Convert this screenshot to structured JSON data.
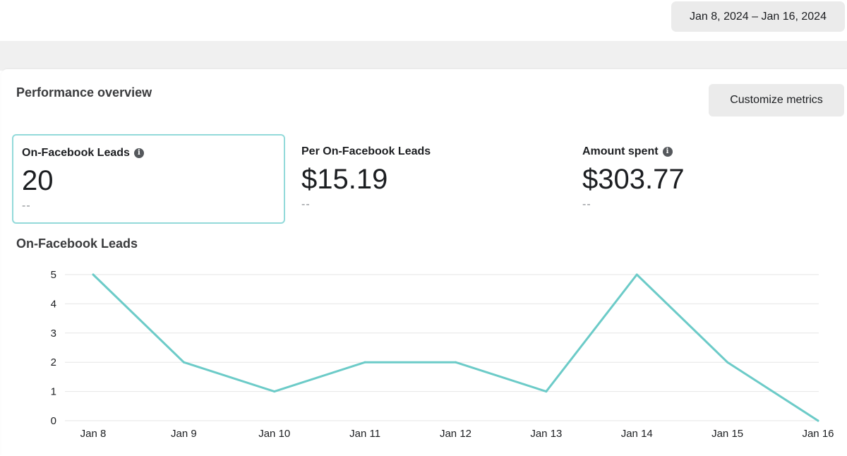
{
  "header": {
    "date_range": "Jan 8, 2024 – Jan 16, 2024"
  },
  "overview": {
    "title": "Performance overview",
    "customize_label": "Customize metrics",
    "metrics": [
      {
        "label": "On-Facebook Leads",
        "value": "20",
        "sub": "--",
        "has_info": true,
        "selected": true
      },
      {
        "label": "Per On-Facebook Leads",
        "value": "$15.19",
        "sub": "--",
        "has_info": false,
        "selected": false
      },
      {
        "label": "Amount spent",
        "value": "$303.77",
        "sub": "--",
        "has_info": true,
        "selected": false
      }
    ]
  },
  "chart_title": "On-Facebook Leads",
  "colors": {
    "line": "#6ccbc8",
    "grid": "#e6e6e6",
    "selected_border": "#93dada"
  },
  "chart_data": {
    "type": "line",
    "x": [
      "Jan 8",
      "Jan 9",
      "Jan 10",
      "Jan 11",
      "Jan 12",
      "Jan 13",
      "Jan 14",
      "Jan 15",
      "Jan 16"
    ],
    "series": [
      {
        "values": [
          5,
          2,
          1,
          2,
          2,
          1,
          5,
          2,
          0
        ]
      }
    ],
    "yticks": [
      0,
      1,
      2,
      3,
      4,
      5
    ],
    "ylim": [
      0,
      5
    ],
    "grid": true
  }
}
